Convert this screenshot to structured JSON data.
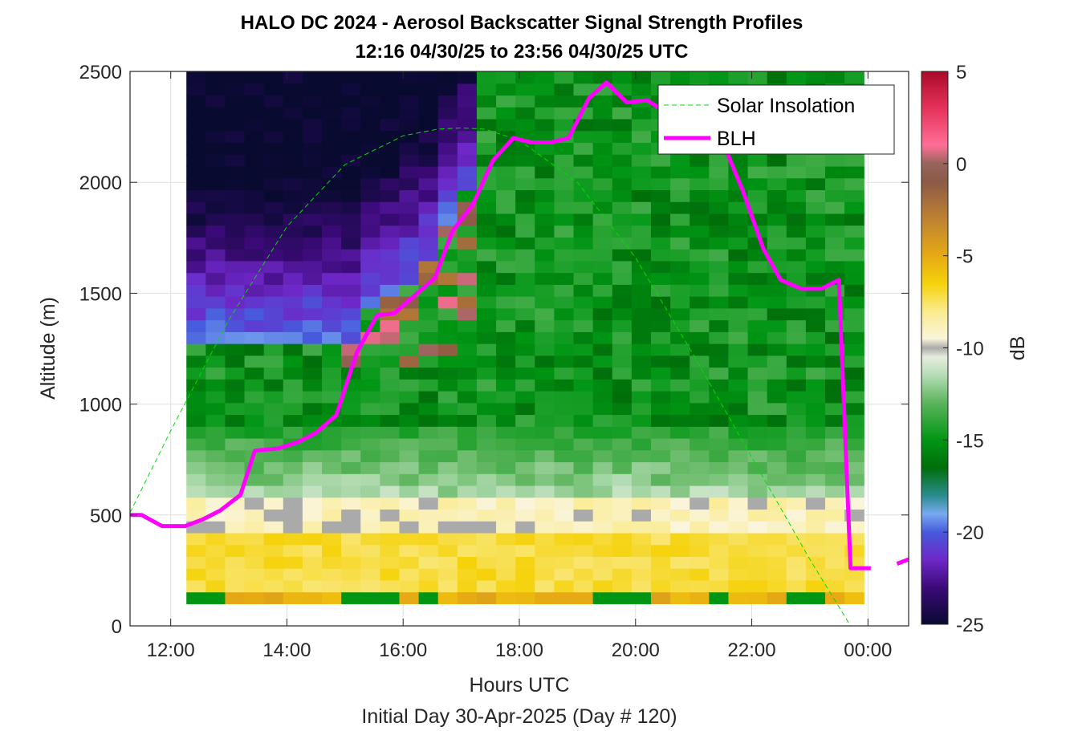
{
  "chart_data": {
    "type": "heatmap",
    "title": "HALO DC 2024 - Aerosol Backscatter Signal Strength Profiles",
    "subtitle": "12:16 04/30/25 to 23:56 04/30/25  UTC",
    "xlabel": "Hours UTC",
    "xlabel2": "Initial Day 30-Apr-2025 (Day # 120)",
    "ylabel": "Altitude (m)",
    "xlim_hours": [
      11.3,
      24.7
    ],
    "ylim": [
      0,
      2500
    ],
    "x_ticks": [
      {
        "value": 12,
        "label": "12:00"
      },
      {
        "value": 14,
        "label": "14:00"
      },
      {
        "value": 16,
        "label": "16:00"
      },
      {
        "value": 18,
        "label": "18:00"
      },
      {
        "value": 20,
        "label": "20:00"
      },
      {
        "value": 22,
        "label": "22:00"
      },
      {
        "value": 24,
        "label": "00:00"
      }
    ],
    "y_ticks": [
      {
        "value": 0,
        "label": "0"
      },
      {
        "value": 500,
        "label": "500"
      },
      {
        "value": 1000,
        "label": "1000"
      },
      {
        "value": 1500,
        "label": "1500"
      },
      {
        "value": 2000,
        "label": "2000"
      },
      {
        "value": 2500,
        "label": "2500"
      }
    ],
    "colorbar": {
      "label": "dB",
      "min": -25,
      "max": 5,
      "ticks": [
        {
          "value": 5,
          "label": "5"
        },
        {
          "value": 0,
          "label": "0"
        },
        {
          "value": -5,
          "label": "-5"
        },
        {
          "value": -10,
          "label": "-10"
        },
        {
          "value": -15,
          "label": "-15"
        },
        {
          "value": -20,
          "label": "-20"
        },
        {
          "value": -25,
          "label": "-25"
        }
      ]
    },
    "heatmap": {
      "time_start_hours": 12.27,
      "time_end_hours": 23.93,
      "n_time_bins": 35,
      "altitude_start_m": 100,
      "altitude_end_m": 2500,
      "n_altitude_bins": 45
    },
    "grid": true,
    "legend_position": "top-right",
    "series": [
      {
        "name": "Solar Insolation",
        "style": "dashed",
        "color": "#00dd00",
        "x": [
          11.3,
          12.0,
          13.0,
          14.0,
          15.0,
          16.0,
          16.6,
          17.0,
          17.4,
          18.0,
          19.0,
          20.0,
          21.0,
          22.0,
          23.0,
          23.7,
          24.0,
          24.7
        ],
        "y": [
          510,
          880,
          1380,
          1800,
          2080,
          2210,
          2240,
          2245,
          2240,
          2190,
          2000,
          1660,
          1220,
          760,
          300,
          0,
          0,
          0
        ]
      },
      {
        "name": "BLH",
        "style": "solid",
        "color": "#ff00ff",
        "x": [
          11.3,
          11.5,
          11.85,
          12.25,
          12.55,
          12.85,
          13.2,
          13.45,
          13.85,
          14.2,
          14.5,
          14.85,
          15.2,
          15.55,
          15.85,
          16.2,
          16.55,
          16.85,
          17.2,
          17.55,
          17.9,
          18.2,
          18.55,
          18.85,
          19.2,
          19.5,
          19.85,
          20.2,
          20.55,
          20.85,
          21.2,
          21.55,
          21.85,
          22.2,
          22.5,
          22.85,
          23.2,
          23.5,
          23.7,
          24.05
        ],
        "y": [
          500,
          500,
          450,
          450,
          480,
          520,
          590,
          790,
          800,
          830,
          870,
          950,
          1230,
          1400,
          1410,
          1490,
          1570,
          1780,
          1900,
          2100,
          2200,
          2180,
          2180,
          2200,
          2380,
          2450,
          2360,
          2370,
          2310,
          2300,
          2300,
          2150,
          1960,
          1700,
          1560,
          1520,
          1520,
          1560,
          260,
          260
        ]
      }
    ]
  }
}
